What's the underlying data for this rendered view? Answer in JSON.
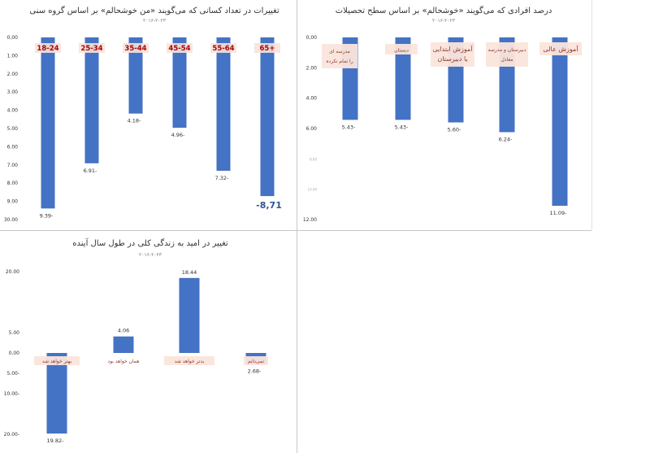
{
  "chart_data": [
    {
      "type": "bar",
      "title": "تغییرات در تعداد کسانی که می‌گویند «من خوشحالم» بر اساس گروه سنی",
      "subtitle": "۲۰۱۶-۲۰۲۳",
      "categories": [
        "18-24",
        "25-34",
        "35-44",
        "45-54",
        "55-64",
        "65+"
      ],
      "values": [
        -9.39,
        -6.91,
        -4.18,
        -4.96,
        -7.32,
        -8.71
      ],
      "value_labels": [
        "9.39-",
        "6.91-",
        "4.18-",
        "4.96-",
        "7.32-",
        "-8,71"
      ],
      "y_ticks": [
        "0,00",
        "1.00",
        "2.00",
        "3.00",
        "4.00",
        "5.00",
        "6.00",
        "7.00",
        "8.00",
        "9.00",
        "30.00"
      ],
      "ylim": [
        -10,
        0
      ],
      "grid": false,
      "bar_color": "#4472c4"
    },
    {
      "type": "bar",
      "title": "درصد افرادی که می‌گویند «خوشحالم» بر اساس سطح تحصیلات",
      "subtitle": "۲۰۱۶-۲۰۲۳",
      "categories": [
        "مدرسه ای را تمام نکرده",
        "دبستان",
        "آموزش ابتدایی یا دبیرستان",
        "دبیرستان و مدرسه معادل",
        "آموزش عالی"
      ],
      "values": [
        -5.43,
        -5.43,
        -5.6,
        -6.24,
        -11.09
      ],
      "value_labels": [
        "5.43-",
        "5.43-",
        "5.60-",
        "6.24-",
        "11.09-"
      ],
      "y_ticks": [
        "0,00",
        "2.00",
        "4.00",
        "6.00",
        "8.00",
        "10.00",
        "12.00"
      ],
      "ylim": [
        -12,
        0
      ],
      "grid": false,
      "bar_color": "#4472c4"
    },
    {
      "type": "bar",
      "title": "تغییر در امید به زندگی کلی در طول سال آینده",
      "subtitle": "۲۰۱۶-۲۰۲۳",
      "categories": [
        "بهتر خواهد شد",
        "همان خواهد بود",
        "بدتر خواهد شد",
        "نمی‌دانم"
      ],
      "values": [
        -19.82,
        4.06,
        18.44,
        -2.68
      ],
      "value_labels": [
        "19.82-",
        "4.06",
        "18.44",
        "2.68-"
      ],
      "y_ticks": [
        "20.00",
        "5.00",
        "0,00",
        "5.00-",
        "10.00-",
        "20.00-"
      ],
      "ylim": [
        -25,
        25
      ],
      "grid": false,
      "bar_color": "#4472c4"
    }
  ]
}
